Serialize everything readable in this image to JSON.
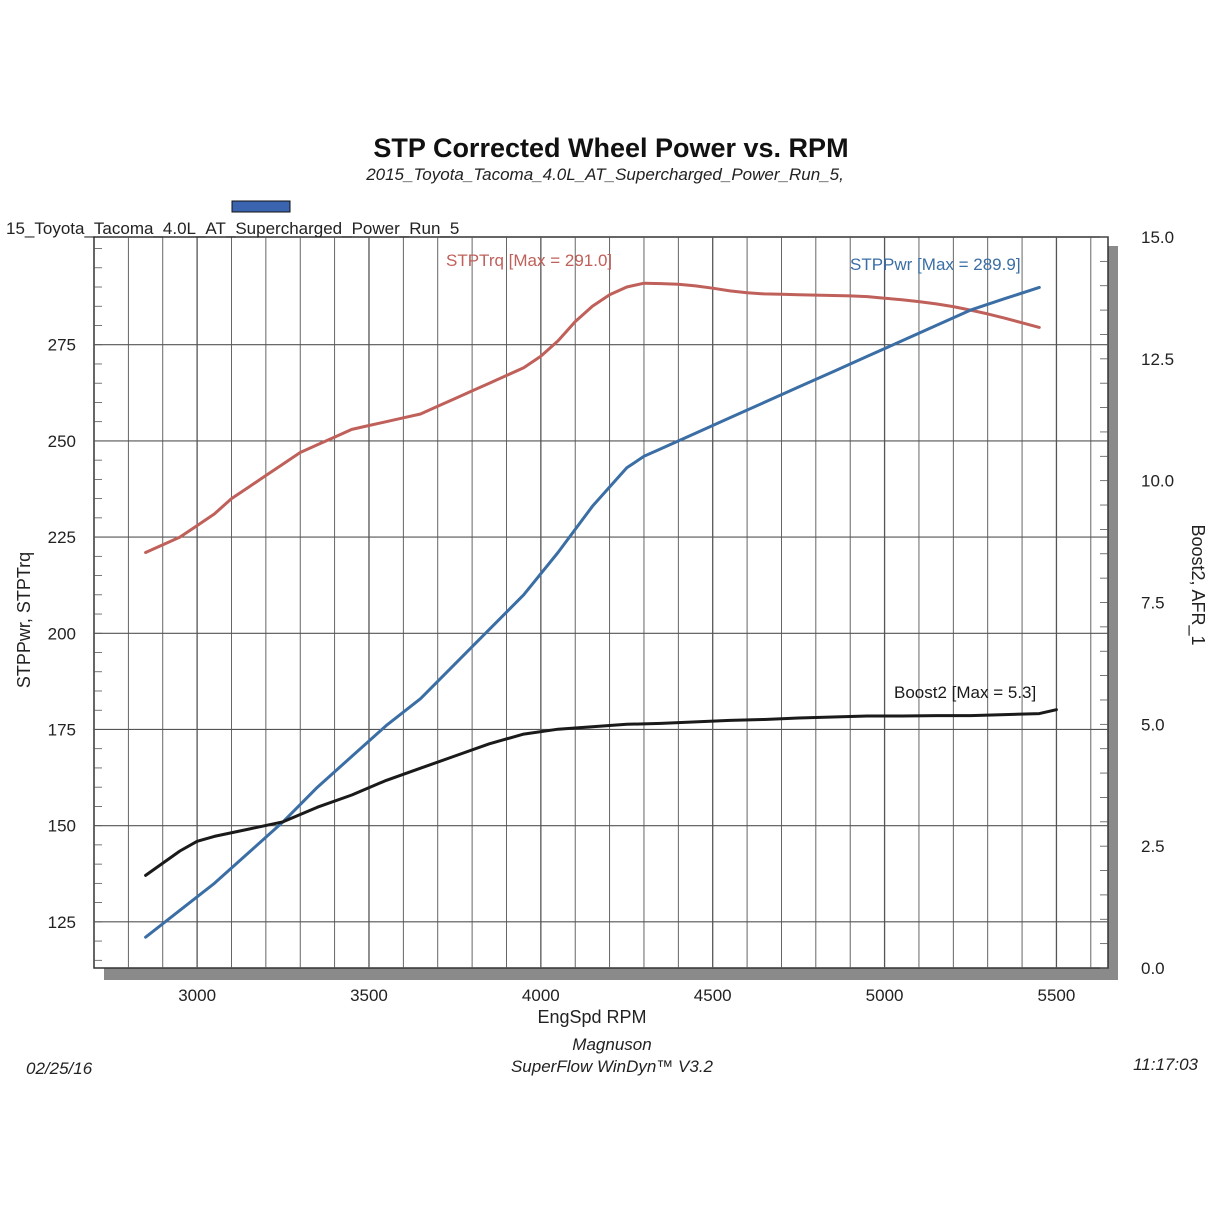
{
  "chart_data": {
    "type": "line",
    "title": "STP Corrected Wheel Power vs. RPM",
    "subtitle": "2015_Toyota_Tacoma_4.0L_AT_Supercharged_Power_Run_5,",
    "legend_label": "15_Toyota_Tacoma_4.0L_AT_Supercharged_Power_Run_5",
    "legend_color": "#3a63b0",
    "xlabel": "EngSpd RPM",
    "ylabel_left": "STPPwr, STPTrq",
    "ylabel_right": "Boost2, AFR_1",
    "xlim": [
      2700,
      5650
    ],
    "ylim_left": [
      113,
      303
    ],
    "ylim_right": [
      0,
      15
    ],
    "x_ticks": [
      "3000",
      "3500",
      "4000",
      "4500",
      "5000",
      "5500"
    ],
    "y_left_ticks": [
      "125",
      "150",
      "175",
      "200",
      "225",
      "250",
      "275"
    ],
    "y_right_ticks": [
      "0.0",
      "2.5",
      "5.0",
      "7.5",
      "10.0",
      "12.5",
      "15.0"
    ],
    "grid": true,
    "series": [
      {
        "name": "STPTrq",
        "axis": "left",
        "color": "#c0605a",
        "annotation": "STPTrq [Max  = 291.0]",
        "x": [
          2850,
          2950,
          3000,
          3050,
          3100,
          3150,
          3200,
          3250,
          3300,
          3350,
          3400,
          3450,
          3500,
          3550,
          3600,
          3650,
          3700,
          3750,
          3800,
          3850,
          3900,
          3950,
          4000,
          4050,
          4100,
          4150,
          4200,
          4250,
          4300,
          4350,
          4400,
          4450,
          4500,
          4550,
          4600,
          4650,
          4700,
          4750,
          4800,
          4850,
          4900,
          4950,
          5000,
          5050,
          5100,
          5150,
          5200,
          5250,
          5300,
          5350,
          5400,
          5450
        ],
        "y": [
          221,
          225,
          228,
          231,
          235,
          238,
          241,
          244,
          247,
          249,
          251,
          253,
          254,
          255,
          256,
          257,
          259,
          261,
          263,
          265,
          267,
          269,
          272,
          276,
          281,
          285,
          288,
          290,
          291,
          290.9,
          290.7,
          290.3,
          289.7,
          289,
          288.5,
          288.2,
          288.1,
          288,
          287.9,
          287.8,
          287.7,
          287.5,
          287.1,
          286.7,
          286.2,
          285.6,
          284.9,
          284,
          283,
          281.9,
          280.7,
          279.5
        ]
      },
      {
        "name": "STPPwr",
        "axis": "left",
        "color": "#3a6ea5",
        "annotation": "STPPwr [Max = 289.9]",
        "x": [
          2850,
          2950,
          3050,
          3150,
          3250,
          3350,
          3450,
          3550,
          3650,
          3750,
          3850,
          3950,
          4050,
          4150,
          4250,
          4300,
          4350,
          4450,
          4550,
          4650,
          4750,
          4850,
          4950,
          5050,
          5150,
          5250,
          5350,
          5450
        ],
        "y": [
          121,
          128,
          135,
          143,
          151,
          160,
          168,
          176,
          183,
          192,
          201,
          210,
          221,
          233,
          243,
          246,
          248,
          252,
          256,
          260,
          264,
          268,
          272,
          276,
          280,
          284,
          287,
          289.9
        ]
      },
      {
        "name": "Boost2",
        "axis": "right",
        "color": "#1a1a1a",
        "annotation": "Boost2 [Max = 5.3]",
        "x": [
          2850,
          2950,
          3000,
          3050,
          3150,
          3250,
          3350,
          3450,
          3550,
          3650,
          3750,
          3850,
          3950,
          4050,
          4150,
          4250,
          4350,
          4450,
          4550,
          4650,
          4750,
          4850,
          4950,
          5050,
          5150,
          5250,
          5350,
          5450,
          5500
        ],
        "y": [
          1.9,
          2.4,
          2.6,
          2.7,
          2.85,
          3.0,
          3.3,
          3.55,
          3.85,
          4.1,
          4.35,
          4.6,
          4.8,
          4.9,
          4.95,
          5.0,
          5.02,
          5.05,
          5.08,
          5.1,
          5.13,
          5.15,
          5.17,
          5.17,
          5.18,
          5.18,
          5.2,
          5.22,
          5.3
        ]
      }
    ]
  },
  "footer": {
    "date": "02/25/16",
    "company": "Magnuson",
    "software": "SuperFlow WinDyn™ V3.2",
    "time": "11:17:03"
  }
}
